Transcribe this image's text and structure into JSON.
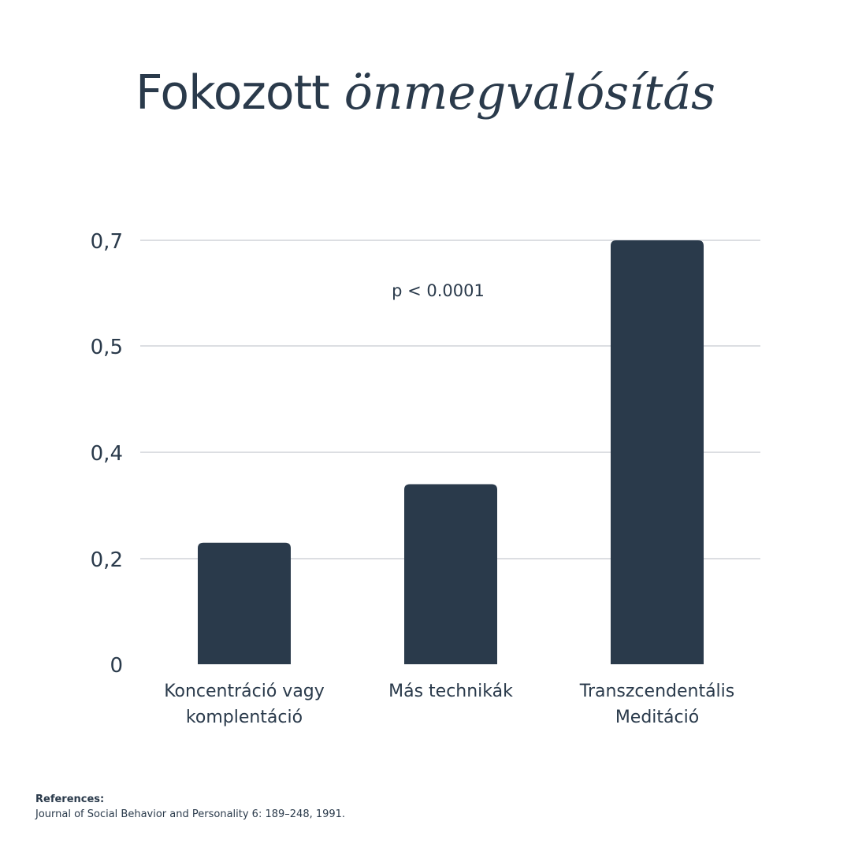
{
  "title": {
    "plain": "Fokozott",
    "accent": "önmegvalósítás"
  },
  "annotation": "p < 0.0001",
  "references": {
    "heading": "References:",
    "text": "Journal of Social Behavior and Personality 6: 189–248, 1991."
  },
  "colors": {
    "bar": "#2a3a4b",
    "grid": "#b9bec4",
    "text": "#2a3a4b"
  },
  "chart_data": {
    "type": "bar",
    "categories": [
      [
        "Koncentráció vagy",
        "komplentáció"
      ],
      [
        "Más technikák"
      ],
      [
        "Transzcendentális",
        "Meditáció"
      ]
    ],
    "values": [
      0.23,
      0.34,
      0.7
    ],
    "yticks": [
      {
        "value": 0,
        "label": "0"
      },
      {
        "value": 0.2,
        "label": "0,2"
      },
      {
        "value": 0.4,
        "label": "0,4"
      },
      {
        "value": 0.5,
        "label": "0,5"
      },
      {
        "value": 0.7,
        "label": "0,7"
      }
    ],
    "grid": true,
    "title": "Fokozott önmegvalósítás",
    "xlabel": "",
    "ylabel": ""
  }
}
